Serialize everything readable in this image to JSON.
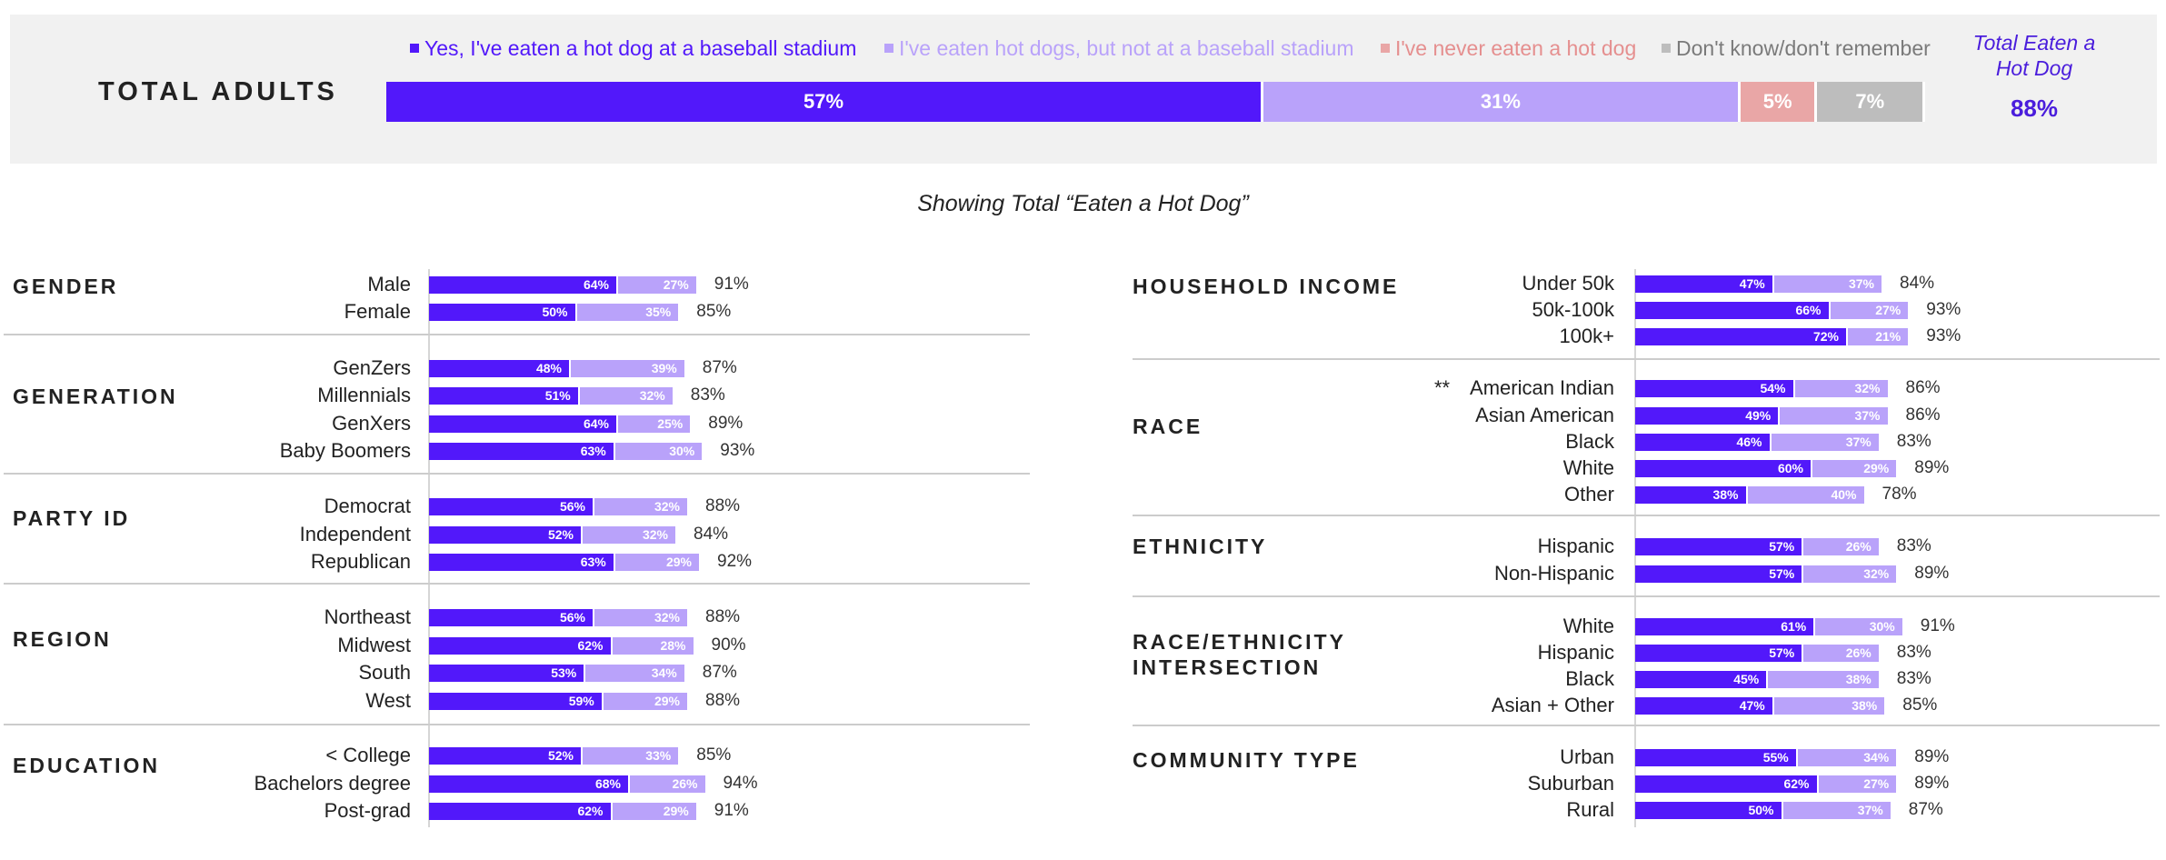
{
  "legend": [
    {
      "label": "Yes, I've eaten a hot dog at a baseball stadium",
      "color": "#5218fa"
    },
    {
      "label": "I've eaten hot dogs, but not at a baseball stadium",
      "color": "#b9a2fa"
    },
    {
      "label": "I've never eaten a hot dog",
      "color": "#e9a6a6"
    },
    {
      "label": "Don't know/don't remember",
      "color": "#bdbdbd"
    }
  ],
  "header": {
    "total_label": "TOTAL ADULTS",
    "net_label": "Total Eaten a Hot Dog",
    "net_value": "88%",
    "subtitle": "Showing Total “Eaten a Hot Dog”"
  },
  "chart_data": {
    "type": "bar",
    "orientation": "horizontal",
    "stacked": true,
    "total": {
      "label": "TOTAL ADULTS",
      "values": [
        57,
        31,
        5,
        7
      ],
      "labels": [
        "57%",
        "31%",
        "5%",
        "7%"
      ],
      "net": "88%"
    },
    "series_names": [
      "Yes, I've eaten a hot dog at a baseball stadium",
      "I've eaten hot dogs, but not at a baseball stadium"
    ],
    "sections": [
      {
        "title": "GENDER",
        "rows": [
          {
            "label": "Male",
            "v1": 64,
            "v2": 27,
            "l1": "64%",
            "l2": "27%",
            "total": "91%"
          },
          {
            "label": "Female",
            "v1": 50,
            "v2": 35,
            "l1": "50%",
            "l2": "35%",
            "total": "85%"
          }
        ]
      },
      {
        "title": "GENERATION",
        "rows": [
          {
            "label": "GenZers",
            "v1": 48,
            "v2": 39,
            "l1": "48%",
            "l2": "39%",
            "total": "87%"
          },
          {
            "label": "Millennials",
            "v1": 51,
            "v2": 32,
            "l1": "51%",
            "l2": "32%",
            "total": "83%"
          },
          {
            "label": "GenXers",
            "v1": 64,
            "v2": 25,
            "l1": "64%",
            "l2": "25%",
            "total": "89%"
          },
          {
            "label": "Baby Boomers",
            "v1": 63,
            "v2": 30,
            "l1": "63%",
            "l2": "30%",
            "total": "93%"
          }
        ]
      },
      {
        "title": "PARTY ID",
        "rows": [
          {
            "label": "Democrat",
            "v1": 56,
            "v2": 32,
            "l1": "56%",
            "l2": "32%",
            "total": "88%"
          },
          {
            "label": "Independent",
            "v1": 52,
            "v2": 32,
            "l1": "52%",
            "l2": "32%",
            "total": "84%"
          },
          {
            "label": "Republican",
            "v1": 63,
            "v2": 29,
            "l1": "63%",
            "l2": "29%",
            "total": "92%"
          }
        ]
      },
      {
        "title": "REGION",
        "rows": [
          {
            "label": "Northeast",
            "v1": 56,
            "v2": 32,
            "l1": "56%",
            "l2": "32%",
            "total": "88%"
          },
          {
            "label": "Midwest",
            "v1": 62,
            "v2": 28,
            "l1": "62%",
            "l2": "28%",
            "total": "90%"
          },
          {
            "label": "South",
            "v1": 53,
            "v2": 34,
            "l1": "53%",
            "l2": "34%",
            "total": "87%"
          },
          {
            "label": "West",
            "v1": 59,
            "v2": 29,
            "l1": "59%",
            "l2": "29%",
            "total": "88%"
          }
        ]
      },
      {
        "title": "EDUCATION",
        "rows": [
          {
            "label": "< College",
            "v1": 52,
            "v2": 33,
            "l1": "52%",
            "l2": "33%",
            "total": "85%"
          },
          {
            "label": "Bachelors degree",
            "v1": 68,
            "v2": 26,
            "l1": "68%",
            "l2": "26%",
            "total": "94%"
          },
          {
            "label": "Post-grad",
            "v1": 62,
            "v2": 29,
            "l1": "62%",
            "l2": "29%",
            "total": "91%"
          }
        ]
      },
      {
        "title": "HOUSEHOLD INCOME",
        "rows": [
          {
            "label": "Under 50k",
            "v1": 47,
            "v2": 37,
            "l1": "47%",
            "l2": "37%",
            "total": "84%"
          },
          {
            "label": "50k-100k",
            "v1": 66,
            "v2": 27,
            "l1": "66%",
            "l2": "27%",
            "total": "93%"
          },
          {
            "label": "100k+",
            "v1": 72,
            "v2": 21,
            "l1": "72%",
            "l2": "21%",
            "total": "93%"
          }
        ]
      },
      {
        "title": "RACE",
        "rows": [
          {
            "label": "American Indian",
            "note": "**",
            "v1": 54,
            "v2": 32,
            "l1": "54%",
            "l2": "32%",
            "total": "86%"
          },
          {
            "label": "Asian American",
            "v1": 49,
            "v2": 37,
            "l1": "49%",
            "l2": "37%",
            "total": "86%"
          },
          {
            "label": "Black",
            "v1": 46,
            "v2": 37,
            "l1": "46%",
            "l2": "37%",
            "total": "83%"
          },
          {
            "label": "White",
            "v1": 60,
            "v2": 29,
            "l1": "60%",
            "l2": "29%",
            "total": "89%"
          },
          {
            "label": "Other",
            "v1": 38,
            "v2": 40,
            "l1": "38%",
            "l2": "40%",
            "total": "78%"
          }
        ]
      },
      {
        "title": "ETHNICITY",
        "rows": [
          {
            "label": "Hispanic",
            "v1": 57,
            "v2": 26,
            "l1": "57%",
            "l2": "26%",
            "total": "83%"
          },
          {
            "label": "Non-Hispanic",
            "v1": 57,
            "v2": 32,
            "l1": "57%",
            "l2": "32%",
            "total": "89%"
          }
        ]
      },
      {
        "title": "RACE/ETHNICITY INTERSECTION",
        "rows": [
          {
            "label": "White",
            "v1": 61,
            "v2": 30,
            "l1": "61%",
            "l2": "30%",
            "total": "91%"
          },
          {
            "label": "Hispanic",
            "v1": 57,
            "v2": 26,
            "l1": "57%",
            "l2": "26%",
            "total": "83%"
          },
          {
            "label": "Black",
            "v1": 45,
            "v2": 38,
            "l1": "45%",
            "l2": "38%",
            "total": "83%"
          },
          {
            "label": "Asian + Other",
            "v1": 47,
            "v2": 38,
            "l1": "47%",
            "l2": "38%",
            "total": "85%"
          }
        ]
      },
      {
        "title": "COMMUNITY TYPE",
        "rows": [
          {
            "label": "Urban",
            "v1": 55,
            "v2": 34,
            "l1": "55%",
            "l2": "34%",
            "total": "89%"
          },
          {
            "label": "Suburban",
            "v1": 62,
            "v2": 27,
            "l1": "62%",
            "l2": "27%",
            "total": "89%"
          },
          {
            "label": "Rural",
            "v1": 50,
            "v2": 37,
            "l1": "50%",
            "l2": "37%",
            "total": "87%"
          }
        ]
      }
    ]
  }
}
